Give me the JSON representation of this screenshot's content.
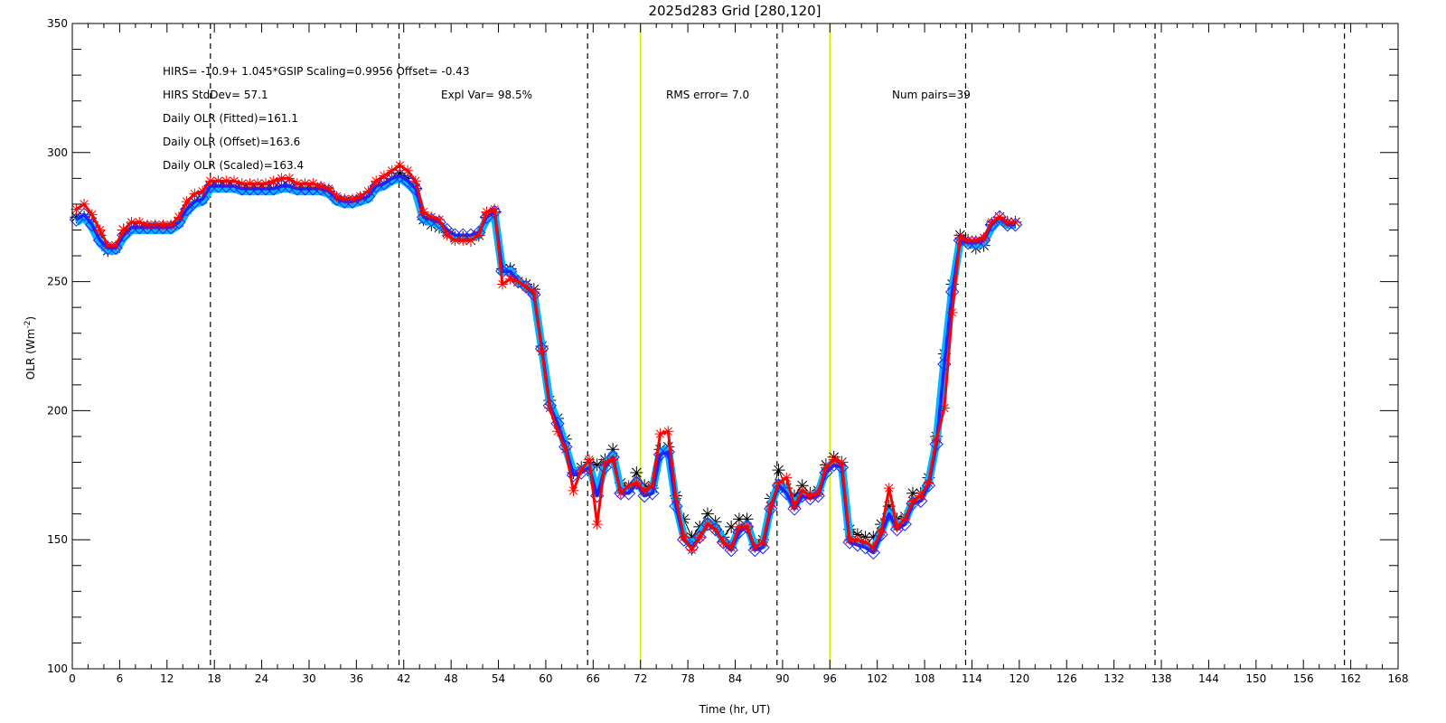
{
  "chart_data": {
    "type": "line",
    "title": "2025d283 Grid [280,120]",
    "xlabel": "Time (hr, UT)",
    "ylabel": "OLR (Wm",
    "ylabel_sup": "-2",
    "ylabel_end": ")",
    "xlim": [
      0,
      168
    ],
    "ylim": [
      100,
      350
    ],
    "xticks": [
      0,
      6,
      12,
      18,
      24,
      30,
      36,
      42,
      48,
      54,
      60,
      66,
      72,
      78,
      84,
      90,
      96,
      102,
      108,
      114,
      120,
      126,
      132,
      138,
      144,
      150,
      156,
      162,
      168
    ],
    "yticks": [
      100,
      150,
      200,
      250,
      300,
      350
    ],
    "x_minor_step": 2,
    "y_minor_step": 10,
    "dashed_vlines": [
      17.5,
      41.4,
      65.3,
      89.3,
      113.2,
      137.2,
      161.2
    ],
    "highlight_vlines": [
      72,
      96
    ],
    "annotations": {
      "fit_eq": "HIRS=  -10.9+  1.045*GSIP  Scaling=0.9956  Offset= -0.43",
      "stddev": "HIRS StdDev= 57.1",
      "expl_var": "Expl Var= 98.5%",
      "rms": "RMS error=  7.0",
      "num_pairs": "Num pairs=39",
      "daily_fitted": "Daily OLR (Fitted)=161.1",
      "daily_offset": "Daily OLR (Offset)=163.6",
      "daily_scaled": "Daily OLR (Scaled)=163.4"
    },
    "x": [
      0.5,
      1.5,
      2.5,
      3.5,
      4.5,
      5.5,
      6.5,
      7.5,
      8.5,
      9.5,
      10.5,
      11.5,
      12.5,
      13.5,
      14.5,
      15.5,
      16.5,
      17.5,
      18.5,
      19.5,
      20.5,
      21.5,
      22.5,
      23.5,
      24.5,
      25.5,
      26.5,
      27.5,
      28.5,
      29.5,
      30.5,
      31.5,
      32.5,
      33.5,
      34.5,
      35.5,
      36.5,
      37.5,
      38.5,
      39.5,
      40.5,
      41.5,
      42.5,
      43.5,
      44.5,
      45.5,
      46.5,
      47.5,
      48.5,
      49.5,
      50.5,
      51.5,
      52.5,
      53.5,
      54.5,
      55.5,
      56.5,
      57.5,
      58.5,
      59.5,
      60.5,
      61.5,
      62.5,
      63.5,
      64.5,
      65.5,
      66.5,
      67.5,
      68.5,
      69.5,
      70.5,
      71.5,
      72.5,
      73.5,
      74.5,
      75.5,
      76.5,
      77.5,
      78.5,
      79.5,
      80.5,
      81.5,
      82.5,
      83.5,
      84.5,
      85.5,
      86.5,
      87.5,
      88.5,
      89.5,
      90.5,
      91.5,
      92.5,
      93.5,
      94.5,
      95.5,
      96.5,
      97.5,
      98.5,
      99.5,
      100.5,
      101.5,
      102.5,
      103.5,
      104.5,
      105.5,
      106.5,
      107.5,
      108.5,
      109.5,
      110.5,
      111.5,
      112.5,
      113.5,
      114.5,
      115.5,
      116.5,
      117.5,
      118.5,
      119.5
    ],
    "series": [
      {
        "name": "",
        "color": "#000000",
        "marker": "asterisk",
        "values": [
          275,
          275,
          273,
          268,
          262,
          263,
          270,
          271,
          271,
          271,
          271,
          271,
          271,
          273,
          278,
          281,
          282,
          287,
          287,
          287,
          287,
          286,
          286,
          286,
          286,
          286,
          287,
          287,
          286,
          286,
          286,
          286,
          285,
          282,
          281,
          281,
          282,
          283,
          287,
          288,
          290,
          292,
          290,
          286,
          274,
          272,
          271,
          269,
          267,
          267,
          266,
          268,
          275,
          277,
          255,
          255,
          250,
          249,
          247,
          225,
          204,
          197,
          189,
          176,
          178,
          180,
          179,
          181,
          185,
          172,
          170,
          176,
          171,
          170,
          185,
          186,
          167,
          158,
          151,
          155,
          160,
          157,
          151,
          155,
          158,
          158,
          148,
          150,
          166,
          177,
          170,
          167,
          171,
          168,
          169,
          179,
          182,
          180,
          154,
          152,
          151,
          151,
          156,
          163,
          158,
          159,
          168,
          168,
          174,
          190,
          222,
          249,
          268,
          266,
          263,
          264,
          272,
          275,
          273,
          273
        ]
      },
      {
        "name": "",
        "color": "#00b8ff",
        "marker": "none",
        "values": [
          273,
          275,
          271,
          265,
          262,
          262,
          267,
          270,
          270,
          270,
          270,
          270,
          270,
          272,
          277,
          280,
          281,
          286,
          286,
          286,
          286,
          285,
          285,
          285,
          285,
          285,
          286,
          286,
          285,
          285,
          285,
          285,
          284,
          281,
          280,
          280,
          281,
          282,
          286,
          287,
          289,
          290,
          288,
          285,
          274,
          273,
          272,
          269,
          267,
          267,
          267,
          268,
          274,
          276,
          254,
          254,
          250,
          248,
          245,
          224,
          203,
          196,
          186,
          176,
          177,
          179,
          168,
          179,
          183,
          169,
          169,
          173,
          168,
          169,
          184,
          185,
          164,
          151,
          148,
          152,
          157,
          155,
          150,
          147,
          154,
          156,
          147,
          148,
          163,
          172,
          169,
          163,
          168,
          167,
          168,
          177,
          180,
          179,
          150,
          149,
          148,
          146,
          153,
          161,
          155,
          157,
          165,
          166,
          172,
          188,
          219,
          247,
          266,
          265,
          264,
          265,
          271,
          274,
          272,
          272
        ]
      },
      {
        "name": "",
        "color": "#2020ff",
        "marker": "diamond",
        "values": [
          274,
          276,
          272,
          266,
          263,
          263,
          268,
          271,
          271,
          271,
          271,
          271,
          271,
          273,
          278,
          281,
          282,
          287,
          287,
          287,
          287,
          286,
          286,
          286,
          286,
          286,
          287,
          287,
          286,
          286,
          286,
          286,
          285,
          282,
          281,
          281,
          282,
          283,
          287,
          288,
          290,
          291,
          289,
          286,
          275,
          274,
          273,
          270,
          268,
          268,
          268,
          269,
          275,
          277,
          254,
          254,
          250,
          248,
          245,
          224,
          202,
          195,
          186,
          175,
          176,
          178,
          167,
          178,
          182,
          168,
          168,
          172,
          167,
          168,
          183,
          184,
          163,
          150,
          147,
          151,
          156,
          154,
          149,
          146,
          153,
          155,
          146,
          147,
          162,
          171,
          168,
          162,
          167,
          166,
          167,
          176,
          179,
          178,
          149,
          148,
          147,
          145,
          152,
          160,
          154,
          156,
          164,
          165,
          171,
          187,
          218,
          246,
          266,
          265,
          265,
          266,
          272,
          275,
          272,
          272
        ]
      },
      {
        "name": "",
        "color": "#ff0000",
        "marker": "asterisk",
        "values": [
          278,
          280,
          276,
          270,
          264,
          264,
          270,
          273,
          273,
          272,
          272,
          272,
          272,
          275,
          281,
          284,
          285,
          289,
          289,
          289,
          289,
          288,
          288,
          288,
          288,
          289,
          290,
          290,
          288,
          288,
          288,
          287,
          286,
          283,
          282,
          282,
          283,
          285,
          289,
          291,
          293,
          295,
          293,
          289,
          277,
          275,
          274,
          268,
          266,
          266,
          266,
          268,
          277,
          278,
          249,
          251,
          250,
          248,
          246,
          223,
          201,
          192,
          185,
          169,
          177,
          181,
          156,
          180,
          181,
          168,
          171,
          172,
          169,
          171,
          191,
          192,
          166,
          151,
          146,
          151,
          156,
          154,
          149,
          147,
          155,
          155,
          147,
          149,
          163,
          172,
          174,
          163,
          169,
          167,
          168,
          178,
          181,
          180,
          150,
          150,
          149,
          147,
          153,
          170,
          155,
          158,
          165,
          167,
          172,
          189,
          201,
          238,
          267,
          266,
          266,
          267,
          273,
          275,
          273,
          273
        ]
      }
    ]
  }
}
